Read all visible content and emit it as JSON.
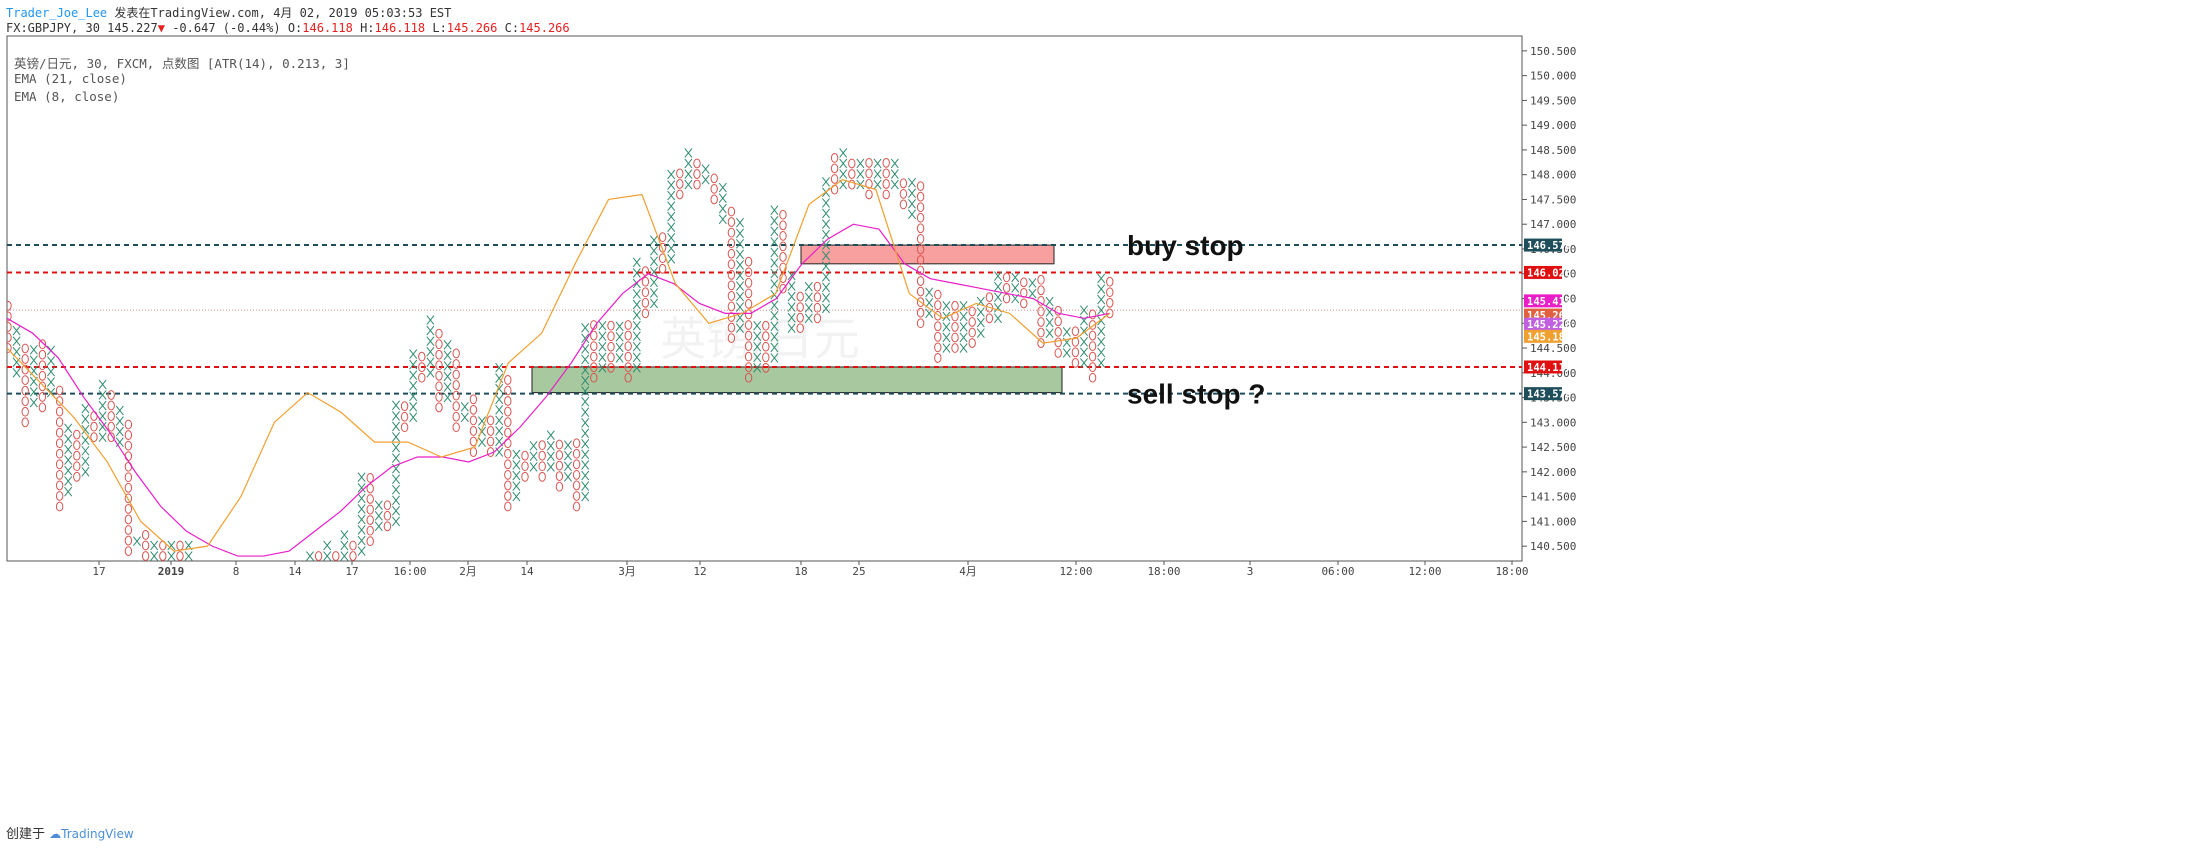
{
  "header": {
    "author": "Trader_Joe_Lee",
    "published": "发表在TradingView.com, 4月 02, 2019 05:03:53 EST",
    "symbol": "FX:GBPJPY, 30",
    "last": "145.227",
    "change": "-0.647 (-0.44%)",
    "o_label": "O:",
    "o": "146.118",
    "h_label": "H:",
    "h": "146.118",
    "l_label": "L:",
    "l": "145.266",
    "c_label": "C:",
    "c": "145.266"
  },
  "legend": {
    "main": "英镑/日元, 30, FXCM, 点数图 [ATR(14), 0.213, 3]",
    "ema21": "EMA (21, close)",
    "ema8": "EMA (8, close)"
  },
  "footer": {
    "created": "创建于",
    "brand": "TradingView"
  },
  "colors": {
    "x_mark": "#2e8b6e",
    "o_mark": "#d9534f",
    "ema21": "#e91ec8",
    "ema8": "#f0a030",
    "buy_zone": "#f8a0a0",
    "sell_zone": "#a8c8a0",
    "dark_line": "#1e4d5c",
    "red_line": "#e01010"
  },
  "chart_data": {
    "type": "point-and-figure",
    "box_size": 0.213,
    "reversal": 3,
    "y_axis": {
      "range": [
        140.2,
        150.8
      ],
      "ticks": [
        140.5,
        141.0,
        141.5,
        142.0,
        142.5,
        143.0,
        143.5,
        144.0,
        144.5,
        145.0,
        145.5,
        146.0,
        146.5,
        147.0,
        147.5,
        148.0,
        148.5,
        149.0,
        149.5,
        150.0,
        150.5
      ]
    },
    "x_axis": {
      "labels": [
        "17",
        "2019",
        "8",
        "14",
        "17",
        "16:00",
        "2月",
        "14",
        "3月",
        "12",
        "18",
        "25",
        "4月",
        "12:00",
        "18:00",
        "3",
        "06:00",
        "12:00",
        "18:00"
      ]
    },
    "columns": [
      {
        "t": "O",
        "lo": 144.5,
        "hi": 145.5
      },
      {
        "t": "X",
        "lo": 144.0,
        "hi": 145.0
      },
      {
        "t": "O",
        "lo": 143.0,
        "hi": 144.6
      },
      {
        "t": "X",
        "lo": 143.4,
        "hi": 144.6
      },
      {
        "t": "O",
        "lo": 143.3,
        "hi": 144.6
      },
      {
        "t": "X",
        "lo": 143.6,
        "hi": 144.5
      },
      {
        "t": "O",
        "lo": 141.3,
        "hi": 143.7
      },
      {
        "t": "X",
        "lo": 141.6,
        "hi": 142.9
      },
      {
        "t": "O",
        "lo": 141.9,
        "hi": 142.9
      },
      {
        "t": "X",
        "lo": 142.0,
        "hi": 143.3
      },
      {
        "t": "O",
        "lo": 142.7,
        "hi": 143.3
      },
      {
        "t": "X",
        "lo": 142.7,
        "hi": 143.9
      },
      {
        "t": "O",
        "lo": 142.7,
        "hi": 143.7
      },
      {
        "t": "X",
        "lo": 142.6,
        "hi": 143.3
      },
      {
        "t": "O",
        "lo": 140.4,
        "hi": 143.1
      },
      {
        "t": "X",
        "lo": 140.6,
        "hi": 140.8
      },
      {
        "t": "O",
        "lo": 140.3,
        "hi": 140.8
      },
      {
        "t": "X",
        "lo": 140.3,
        "hi": 140.6
      },
      {
        "t": "O",
        "lo": 140.3,
        "hi": 140.6
      },
      {
        "t": "X",
        "lo": 140.3,
        "hi": 140.6
      },
      {
        "t": "O",
        "lo": 140.3,
        "hi": 140.6
      },
      {
        "t": "X",
        "lo": 140.3,
        "hi": 140.6
      },
      {
        "t": "X",
        "lo": 140.3,
        "hi": 140.5
      },
      {
        "t": "O",
        "lo": 140.3,
        "hi": 140.4
      },
      {
        "t": "X",
        "lo": 140.3,
        "hi": 140.7
      },
      {
        "t": "O",
        "lo": 140.3,
        "hi": 140.4
      },
      {
        "t": "X",
        "lo": 140.3,
        "hi": 140.9
      },
      {
        "t": "O",
        "lo": 140.3,
        "hi": 140.7
      },
      {
        "t": "X",
        "lo": 140.4,
        "hi": 141.9
      },
      {
        "t": "O",
        "lo": 140.6,
        "hi": 141.9
      },
      {
        "t": "X",
        "lo": 140.9,
        "hi": 141.5
      },
      {
        "t": "O",
        "lo": 140.9,
        "hi": 141.5
      },
      {
        "t": "X",
        "lo": 141.0,
        "hi": 143.5
      },
      {
        "t": "O",
        "lo": 142.9,
        "hi": 143.5
      },
      {
        "t": "X",
        "lo": 143.1,
        "hi": 144.5
      },
      {
        "t": "O",
        "lo": 143.9,
        "hi": 144.5
      },
      {
        "t": "X",
        "lo": 144.0,
        "hi": 145.2
      },
      {
        "t": "O",
        "lo": 143.3,
        "hi": 145.0
      },
      {
        "t": "X",
        "lo": 143.5,
        "hi": 144.7
      },
      {
        "t": "O",
        "lo": 142.9,
        "hi": 144.5
      },
      {
        "t": "X",
        "lo": 143.1,
        "hi": 143.5
      },
      {
        "t": "O",
        "lo": 142.4,
        "hi": 143.5
      },
      {
        "t": "X",
        "lo": 142.6,
        "hi": 143.1
      },
      {
        "t": "O",
        "lo": 142.4,
        "hi": 143.1
      },
      {
        "t": "X",
        "lo": 142.4,
        "hi": 144.3
      },
      {
        "t": "O",
        "lo": 141.3,
        "hi": 143.9
      },
      {
        "t": "X",
        "lo": 141.5,
        "hi": 142.5
      },
      {
        "t": "O",
        "lo": 141.9,
        "hi": 142.5
      },
      {
        "t": "X",
        "lo": 142.1,
        "hi": 142.7
      },
      {
        "t": "O",
        "lo": 141.9,
        "hi": 142.7
      },
      {
        "t": "X",
        "lo": 142.1,
        "hi": 142.9
      },
      {
        "t": "O",
        "lo": 141.7,
        "hi": 142.7
      },
      {
        "t": "X",
        "lo": 141.9,
        "hi": 142.7
      },
      {
        "t": "O",
        "lo": 141.3,
        "hi": 142.7
      },
      {
        "t": "X",
        "lo": 141.5,
        "hi": 145.0
      },
      {
        "t": "O",
        "lo": 143.9,
        "hi": 145.0
      },
      {
        "t": "X",
        "lo": 144.1,
        "hi": 145.0
      },
      {
        "t": "O",
        "lo": 144.1,
        "hi": 145.0
      },
      {
        "t": "X",
        "lo": 144.3,
        "hi": 145.0
      },
      {
        "t": "O",
        "lo": 143.9,
        "hi": 145.0
      },
      {
        "t": "X",
        "lo": 144.1,
        "hi": 146.4
      },
      {
        "t": "O",
        "lo": 145.2,
        "hi": 146.2
      },
      {
        "t": "X",
        "lo": 145.4,
        "hi": 146.8
      },
      {
        "t": "O",
        "lo": 146.1,
        "hi": 146.8
      },
      {
        "t": "X",
        "lo": 146.3,
        "hi": 148.2
      },
      {
        "t": "O",
        "lo": 147.6,
        "hi": 148.2
      },
      {
        "t": "X",
        "lo": 147.8,
        "hi": 148.5
      },
      {
        "t": "O",
        "lo": 147.8,
        "hi": 148.3
      },
      {
        "t": "X",
        "lo": 147.9,
        "hi": 148.3
      },
      {
        "t": "O",
        "lo": 147.5,
        "hi": 148.1
      },
      {
        "t": "X",
        "lo": 147.1,
        "hi": 147.9
      },
      {
        "t": "O",
        "lo": 144.7,
        "hi": 147.3
      },
      {
        "t": "X",
        "lo": 144.9,
        "hi": 147.1
      },
      {
        "t": "O",
        "lo": 143.9,
        "hi": 146.3
      },
      {
        "t": "X",
        "lo": 144.1,
        "hi": 145.1
      },
      {
        "t": "O",
        "lo": 144.1,
        "hi": 145.1
      },
      {
        "t": "X",
        "lo": 144.3,
        "hi": 147.3
      },
      {
        "t": "O",
        "lo": 145.7,
        "hi": 147.3
      },
      {
        "t": "X",
        "lo": 144.9,
        "hi": 146.1
      },
      {
        "t": "O",
        "lo": 144.9,
        "hi": 145.7
      },
      {
        "t": "X",
        "lo": 145.1,
        "hi": 145.9
      },
      {
        "t": "O",
        "lo": 145.1,
        "hi": 145.9
      },
      {
        "t": "X",
        "lo": 145.3,
        "hi": 147.9
      },
      {
        "t": "O",
        "lo": 147.7,
        "hi": 148.5
      },
      {
        "t": "X",
        "lo": 147.8,
        "hi": 148.5
      },
      {
        "t": "O",
        "lo": 147.8,
        "hi": 148.4
      },
      {
        "t": "X",
        "lo": 147.8,
        "hi": 148.3
      },
      {
        "t": "O",
        "lo": 147.6,
        "hi": 148.3
      },
      {
        "t": "X",
        "lo": 147.8,
        "hi": 148.3
      },
      {
        "t": "O",
        "lo": 147.6,
        "hi": 148.3
      },
      {
        "t": "X",
        "lo": 147.8,
        "hi": 148.3
      },
      {
        "t": "O",
        "lo": 147.4,
        "hi": 148.0
      },
      {
        "t": "X",
        "lo": 147.2,
        "hi": 147.9
      },
      {
        "t": "O",
        "lo": 145.0,
        "hi": 147.9
      },
      {
        "t": "X",
        "lo": 145.2,
        "hi": 145.7
      },
      {
        "t": "O",
        "lo": 144.3,
        "hi": 145.6
      },
      {
        "t": "X",
        "lo": 144.5,
        "hi": 145.4
      },
      {
        "t": "O",
        "lo": 144.5,
        "hi": 145.4
      },
      {
        "t": "X",
        "lo": 144.5,
        "hi": 145.4
      },
      {
        "t": "O",
        "lo": 144.6,
        "hi": 145.4
      },
      {
        "t": "X",
        "lo": 144.8,
        "hi": 145.6
      },
      {
        "t": "O",
        "lo": 145.1,
        "hi": 145.7
      },
      {
        "t": "X",
        "lo": 145.1,
        "hi": 146.0
      },
      {
        "t": "O",
        "lo": 145.5,
        "hi": 146.0
      },
      {
        "t": "X",
        "lo": 145.5,
        "hi": 146.0
      },
      {
        "t": "O",
        "lo": 145.4,
        "hi": 146.0
      },
      {
        "t": "X",
        "lo": 145.6,
        "hi": 145.9
      },
      {
        "t": "O",
        "lo": 144.6,
        "hi": 145.9
      },
      {
        "t": "X",
        "lo": 144.8,
        "hi": 145.5
      },
      {
        "t": "O",
        "lo": 144.4,
        "hi": 145.3
      },
      {
        "t": "X",
        "lo": 144.4,
        "hi": 145.0
      },
      {
        "t": "O",
        "lo": 144.2,
        "hi": 145.0
      },
      {
        "t": "X",
        "lo": 144.2,
        "hi": 145.4
      },
      {
        "t": "O",
        "lo": 143.9,
        "hi": 145.2
      },
      {
        "t": "X",
        "lo": 144.2,
        "hi": 146.1
      },
      {
        "t": "O",
        "lo": 145.2,
        "hi": 146.0
      }
    ],
    "ema21": [
      145.1,
      144.8,
      144.3,
      143.5,
      142.8,
      142.0,
      141.3,
      140.8,
      140.5,
      140.3,
      140.3,
      140.4,
      140.8,
      141.2,
      141.7,
      142.1,
      142.3,
      142.3,
      142.2,
      142.4,
      142.9,
      143.5,
      144.2,
      145.0,
      145.6,
      146.0,
      145.8,
      145.4,
      145.2,
      145.2,
      145.5,
      146.2,
      146.7,
      147.0,
      146.9,
      146.2,
      145.9,
      145.8,
      145.7,
      145.6,
      145.5,
      145.2,
      145.1,
      145.2
    ],
    "ema8": [
      144.5,
      143.8,
      143.1,
      142.2,
      141.0,
      140.4,
      140.5,
      141.5,
      143.0,
      143.6,
      143.2,
      142.6,
      142.6,
      142.3,
      142.5,
      144.2,
      144.8,
      146.2,
      147.5,
      147.6,
      145.8,
      145.0,
      145.2,
      145.6,
      147.4,
      147.9,
      147.7,
      145.6,
      145.1,
      145.4,
      145.2,
      144.6,
      144.7,
      145.2
    ],
    "ema21_label": "145.223",
    "ema8_label": "145.180",
    "price_labels": [
      {
        "value": 146.579,
        "text": "146.579",
        "color": "#1e4d5c"
      },
      {
        "value": 146.026,
        "text": "146.026",
        "color": "#e01010"
      },
      {
        "value": 145.412,
        "text": "145.412",
        "color": "#e91ec8"
      },
      {
        "value": 145.266,
        "text": "145.266",
        "color": "#e06040"
      },
      {
        "value": 145.223,
        "text": "145.223",
        "color": "#c060e0"
      },
      {
        "value": 145.18,
        "text": "145.180",
        "color": "#f0a030"
      },
      {
        "value": 144.117,
        "text": "144.117",
        "color": "#e01010"
      },
      {
        "value": 143.579,
        "text": "143.579",
        "color": "#1e4d5c"
      }
    ],
    "hlines": [
      {
        "value": 146.579,
        "style": "dark"
      },
      {
        "value": 146.026,
        "style": "red"
      },
      {
        "value": 144.117,
        "style": "red"
      },
      {
        "value": 143.579,
        "style": "dark"
      },
      {
        "value": 145.266,
        "style": "thin"
      }
    ],
    "zones": [
      {
        "name": "buy",
        "y_top": 146.579,
        "y_bot": 146.2
      },
      {
        "name": "sell",
        "y_top": 144.117,
        "y_bot": 143.6
      }
    ],
    "annotations": [
      {
        "text": "buy stop",
        "y": 146.579
      },
      {
        "text": "sell stop ?",
        "y": 143.579
      }
    ],
    "watermark": "英镑/日元"
  }
}
